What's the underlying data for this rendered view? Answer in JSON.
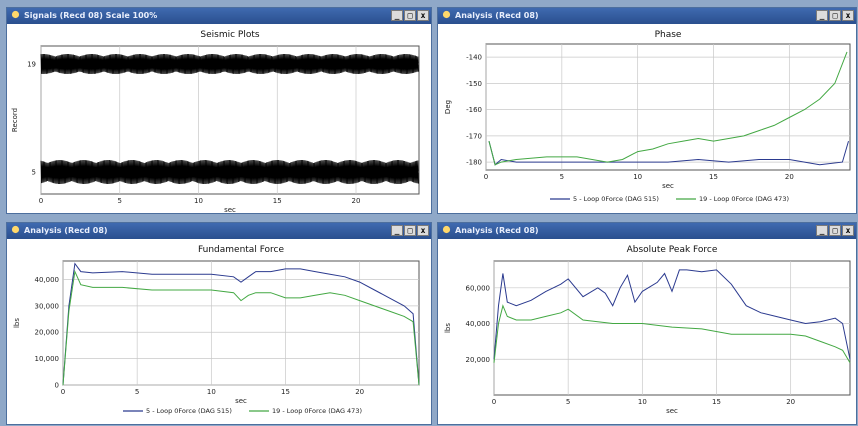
{
  "colors": {
    "series_blue": "#2b3a8f",
    "series_green": "#43a843",
    "signal": "#000000",
    "grid": "#c8c8c8",
    "titlebar": "#2f5597"
  },
  "windows": [
    {
      "title": "Signals (Recd 08) Scale 100%",
      "buttons": [
        "_",
        "□",
        "x"
      ]
    },
    {
      "title": "Analysis (Recd 08)",
      "buttons": [
        "_",
        "□",
        "x"
      ]
    },
    {
      "title": "Analysis (Recd 08)",
      "buttons": [
        "_",
        "□",
        "x"
      ]
    },
    {
      "title": "Analysis (Recd 08)",
      "buttons": [
        "_",
        "□",
        "x"
      ]
    }
  ],
  "chart_data": [
    {
      "type": "line",
      "title": "Seismic Plots",
      "xlabel": "sec",
      "ylabel": "Record",
      "xlim": [
        0,
        24
      ],
      "xticks": [
        0,
        5,
        10,
        15,
        20
      ],
      "yticks": [
        5,
        19
      ],
      "grid": true,
      "series": [
        {
          "name": "",
          "values": [
            {
              "x": 0,
              "y": 19
            },
            {
              "x": 24,
              "y": 19
            }
          ]
        },
        {
          "name": "",
          "values": [
            {
              "x": 0,
              "y": 5
            },
            {
              "x": 24,
              "y": 5
            }
          ]
        }
      ]
    },
    {
      "type": "line",
      "title": "Phase",
      "xlabel": "sec",
      "ylabel": "Deg",
      "xlim": [
        0,
        24
      ],
      "ylim": [
        -183,
        -135
      ],
      "xticks": [
        0,
        5,
        10,
        15,
        20
      ],
      "yticks": [
        -140,
        -150,
        -160,
        -170,
        -180
      ],
      "grid": true,
      "legend": "bottom",
      "series": [
        {
          "name": "5 - Loop 0Force (DAG 515)",
          "color": "blue",
          "x": [
            0.2,
            0.6,
            1,
            2,
            4,
            6,
            8,
            10,
            12,
            14,
            16,
            18,
            20,
            22,
            23.5,
            23.9
          ],
          "y": [
            -172,
            -181,
            -179,
            -180,
            -180,
            -180,
            -180,
            -180,
            -180,
            -179,
            -180,
            -179,
            -179,
            -181,
            -180,
            -172
          ]
        },
        {
          "name": "19 - Loop 0Force (DAG 473)",
          "color": "green",
          "x": [
            0.2,
            0.6,
            1,
            2,
            4,
            6,
            8,
            9,
            10,
            11,
            12,
            13,
            14,
            15,
            16,
            17,
            18,
            19,
            20,
            21,
            22,
            23,
            23.8
          ],
          "y": [
            -172,
            -181,
            -180,
            -179,
            -178,
            -178,
            -180,
            -179,
            -176,
            -175,
            -173,
            -172,
            -171,
            -172,
            -171,
            -170,
            -168,
            -166,
            -163,
            -160,
            -156,
            -150,
            -138
          ]
        }
      ]
    },
    {
      "type": "line",
      "title": "Fundamental Force",
      "xlabel": "sec",
      "ylabel": "lbs",
      "xlim": [
        0,
        24
      ],
      "ylim": [
        0,
        47000
      ],
      "xticks": [
        0,
        5,
        10,
        15,
        20
      ],
      "yticks": [
        0,
        10000,
        20000,
        30000,
        40000
      ],
      "ytick_labels": [
        "0",
        "10,000",
        "20,000",
        "30,000",
        "40,000"
      ],
      "grid": true,
      "legend": "bottom",
      "series": [
        {
          "name": "5 - Loop 0Force (DAG 515)",
          "color": "blue",
          "x": [
            0,
            0.4,
            0.8,
            1.2,
            2,
            4,
            6,
            8,
            10,
            11.5,
            12,
            12.5,
            13,
            14,
            15,
            16,
            17,
            18,
            19,
            20,
            21,
            22,
            23,
            23.6,
            24
          ],
          "y": [
            0,
            30000,
            46000,
            43000,
            42500,
            43000,
            42000,
            42000,
            42000,
            41000,
            39000,
            41000,
            43000,
            43000,
            44000,
            44000,
            43000,
            42000,
            41000,
            39000,
            36000,
            33000,
            30000,
            27000,
            0
          ]
        },
        {
          "name": "19 - Loop 0Force (DAG 473)",
          "color": "green",
          "x": [
            0,
            0.4,
            0.8,
            1.2,
            2,
            4,
            6,
            8,
            10,
            11.5,
            12,
            12.5,
            13,
            14,
            15,
            16,
            17,
            18,
            19,
            20,
            21,
            22,
            23,
            23.6,
            24
          ],
          "y": [
            0,
            28000,
            43000,
            38000,
            37000,
            37000,
            36000,
            36000,
            36000,
            35000,
            32000,
            34000,
            35000,
            35000,
            33000,
            33000,
            34000,
            35000,
            34000,
            32000,
            30000,
            28000,
            26000,
            24000,
            0
          ]
        }
      ]
    },
    {
      "type": "line",
      "title": "Absolute Peak Force",
      "xlabel": "sec",
      "ylabel": "lbs",
      "xlim": [
        0,
        24
      ],
      "ylim": [
        0,
        75000
      ],
      "xticks": [
        0,
        5,
        10,
        15,
        20
      ],
      "yticks": [
        20000,
        40000,
        60000
      ],
      "ytick_labels": [
        "20,000",
        "40,000",
        "60,000"
      ],
      "grid": true,
      "series": [
        {
          "name": "",
          "color": "blue",
          "x": [
            0,
            0.3,
            0.6,
            0.9,
            1.5,
            2.5,
            3.5,
            4.5,
            5,
            6,
            7,
            7.5,
            8,
            8.5,
            9,
            9.5,
            10,
            11,
            11.5,
            12,
            12.5,
            13,
            14,
            15,
            16,
            17,
            18,
            19,
            20,
            21,
            22,
            23,
            23.5,
            24
          ],
          "y": [
            20000,
            50000,
            68000,
            52000,
            50000,
            53000,
            58000,
            62000,
            65000,
            55000,
            60000,
            57000,
            50000,
            60000,
            67000,
            52000,
            58000,
            63000,
            68000,
            58000,
            70000,
            70000,
            69000,
            70000,
            62000,
            50000,
            46000,
            44000,
            42000,
            40000,
            41000,
            43000,
            40000,
            20000
          ]
        },
        {
          "name": "",
          "color": "green",
          "x": [
            0,
            0.3,
            0.6,
            0.9,
            1.5,
            2.5,
            3.5,
            4.5,
            5,
            6,
            8,
            10,
            12,
            14,
            16,
            18,
            20,
            21,
            22,
            23,
            23.5,
            24
          ],
          "y": [
            18000,
            40000,
            50000,
            44000,
            42000,
            42000,
            44000,
            46000,
            48000,
            42000,
            40000,
            40000,
            38000,
            37000,
            34000,
            34000,
            34000,
            33000,
            30000,
            27000,
            25000,
            18000
          ]
        }
      ]
    }
  ]
}
